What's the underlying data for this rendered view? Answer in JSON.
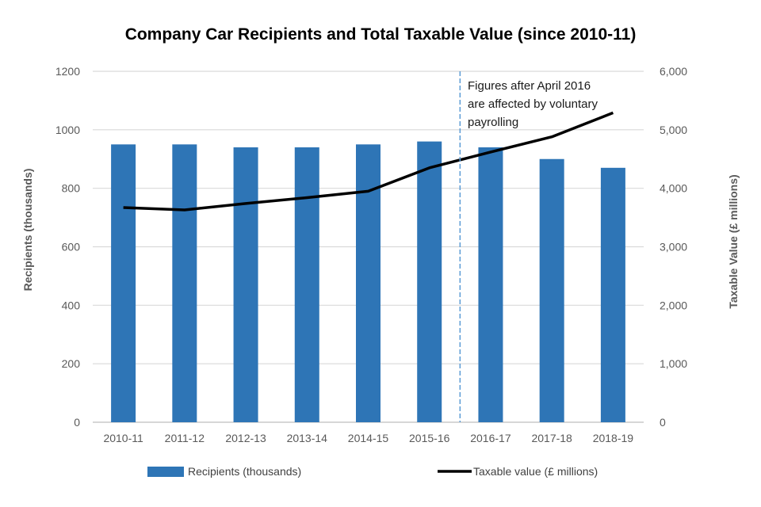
{
  "chart_data": {
    "type": "bar",
    "title": "Company Car Recipients and Total Taxable Value (since 2010-11)",
    "categories": [
      "2010-11",
      "2011-12",
      "2012-13",
      "2013-14",
      "2014-15",
      "2015-16",
      "2016-17",
      "2017-18",
      "2018-19"
    ],
    "series": [
      {
        "name": "Recipients (thousands)",
        "type": "bar",
        "axis": "left",
        "color": "#2e75b6",
        "values": [
          950,
          950,
          940,
          940,
          950,
          960,
          940,
          900,
          870
        ]
      },
      {
        "name": "Taxable value (£ millions)",
        "type": "line",
        "axis": "right",
        "color": "#000000",
        "values": [
          3670,
          3630,
          3740,
          3840,
          3950,
          4350,
          4620,
          4880,
          5290
        ]
      }
    ],
    "ylabel": "Recipients (thousands)",
    "ylabel_right": "Taxable Value (£ millions)",
    "ylim": [
      0,
      1200
    ],
    "ylim_right": [
      0,
      6000
    ],
    "yticks": [
      "0",
      "200",
      "400",
      "600",
      "800",
      "1000",
      "1200"
    ],
    "yticks_right": [
      "0",
      "1,000",
      "2,000",
      "3,000",
      "4,000",
      "5,000",
      "6,000"
    ],
    "grid": true,
    "legend_position": "bottom",
    "annotation": {
      "lines": [
        "Figures after April 2016",
        "are affected by voluntary",
        "payrolling"
      ],
      "divider_after_category": "2015-16"
    }
  }
}
